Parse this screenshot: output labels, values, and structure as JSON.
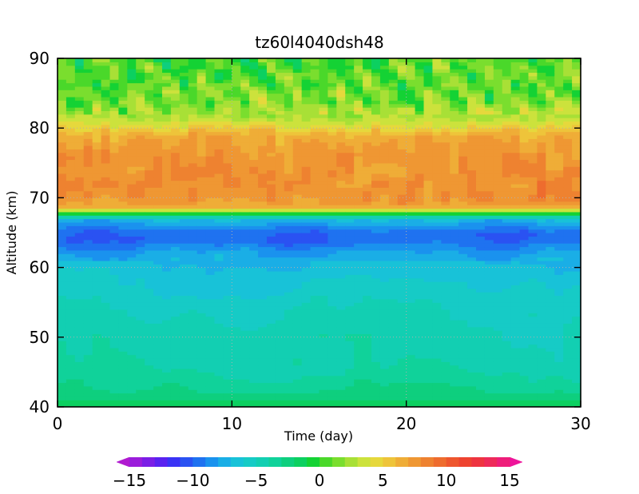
{
  "chart_data": {
    "type": "heatmap",
    "title": "tz60l4040dsh48",
    "xlabel": "Time (day)",
    "ylabel": "Altitude (km)",
    "xlim": [
      0,
      30
    ],
    "ylim": [
      40,
      90
    ],
    "x_ticks": [
      "0",
      "10",
      "20",
      "30"
    ],
    "y_ticks": [
      "40",
      "50",
      "60",
      "70",
      "80",
      "90"
    ],
    "grid": "dotted",
    "colorbar": {
      "orientation": "horizontal",
      "placement": "bottom",
      "levels": [
        -15,
        -14,
        -13,
        -12,
        -11,
        -10,
        -9,
        -8,
        -7,
        -6,
        -5,
        -4,
        -3,
        -2,
        -1,
        0,
        1,
        2,
        3,
        4,
        5,
        6,
        7,
        8,
        9,
        10,
        11,
        12,
        13,
        14,
        15
      ],
      "tick_labels": [
        "−15",
        "−10",
        "−5",
        "0",
        "5",
        "10",
        "15"
      ],
      "colors": [
        "#9b1ddb",
        "#7b1ee6",
        "#5a22f0",
        "#3a33f5",
        "#2a52f2",
        "#1f72f0",
        "#1a92ee",
        "#1aaee6",
        "#18c2d8",
        "#16cbc6",
        "#12cfb2",
        "#10d29a",
        "#0ecf7e",
        "#0cd060",
        "#14d234",
        "#4ad82a",
        "#7ade2e",
        "#a8e036",
        "#cce23c",
        "#e6d83c",
        "#eec43a",
        "#efad37",
        "#ef9733",
        "#ee8230",
        "#ee6c2e",
        "#ee562e",
        "#ee4330",
        "#ee3440",
        "#ee2a5a",
        "#ee1e7a"
      ]
    },
    "altitude_profile": {
      "altitudes": [
        40,
        41,
        42,
        44,
        46,
        48,
        50,
        52,
        54,
        56,
        58,
        60,
        61,
        62,
        63,
        64,
        65,
        66,
        67,
        67.5,
        68,
        68.5,
        69,
        70,
        72,
        74,
        76,
        78,
        79,
        80,
        81,
        82,
        84,
        86,
        88,
        90
      ],
      "values": [
        -1,
        -1.8,
        -2.8,
        -3.6,
        -4.2,
        -4.5,
        -4.6,
        -4.7,
        -5,
        -5.5,
        -6,
        -6.6,
        -7,
        -7.5,
        -8.5,
        -9.5,
        -9.3,
        -8,
        -6.5,
        -3,
        1,
        5,
        7,
        7.8,
        8,
        7.7,
        7.5,
        7,
        6.5,
        5,
        3.5,
        2.5,
        1.5,
        1,
        0.8,
        0.5
      ]
    }
  }
}
